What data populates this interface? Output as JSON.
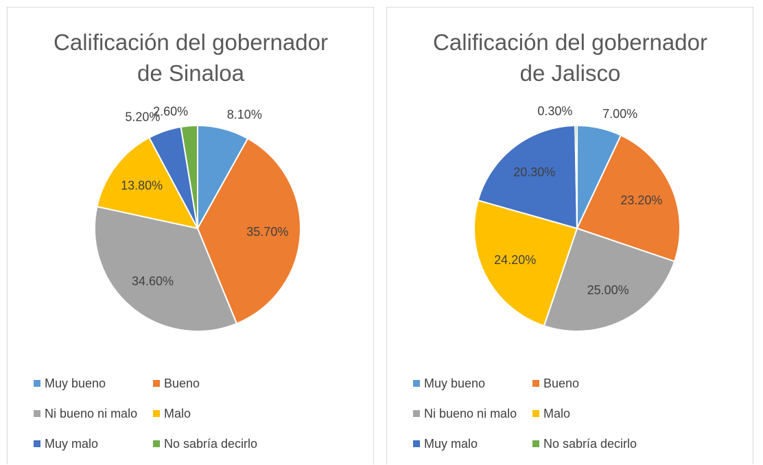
{
  "chart_data": [
    {
      "type": "pie",
      "title": "Calificación del gobernador de Sinaloa",
      "categories": [
        "Muy bueno",
        "Bueno",
        "Ni bueno ni malo",
        "Malo",
        "Muy malo",
        "No sabría decirlo"
      ],
      "values": [
        8.1,
        35.7,
        34.6,
        13.8,
        5.2,
        2.6
      ],
      "value_labels": [
        "8.10%",
        "35.70%",
        "34.60%",
        "13.80%",
        "5.20%",
        "2.60%"
      ],
      "colors": [
        "#5b9bd5",
        "#ed7d31",
        "#a5a5a5",
        "#ffc000",
        "#4472c4",
        "#70ad47"
      ],
      "legend": "bottom"
    },
    {
      "type": "pie",
      "title": "Calificación del gobernador de Jalisco",
      "categories": [
        "Muy bueno",
        "Bueno",
        "Ni bueno ni malo",
        "Malo",
        "Muy malo",
        "No sabría decirlo"
      ],
      "values": [
        7.0,
        23.2,
        25.0,
        24.2,
        20.3,
        0.3
      ],
      "value_labels": [
        "7.00%",
        "23.20%",
        "25.00%",
        "24.20%",
        "20.30%",
        "0.30%"
      ],
      "colors": [
        "#5b9bd5",
        "#ed7d31",
        "#a5a5a5",
        "#ffc000",
        "#4472c4",
        "#70ad47"
      ],
      "legend": "bottom"
    }
  ]
}
